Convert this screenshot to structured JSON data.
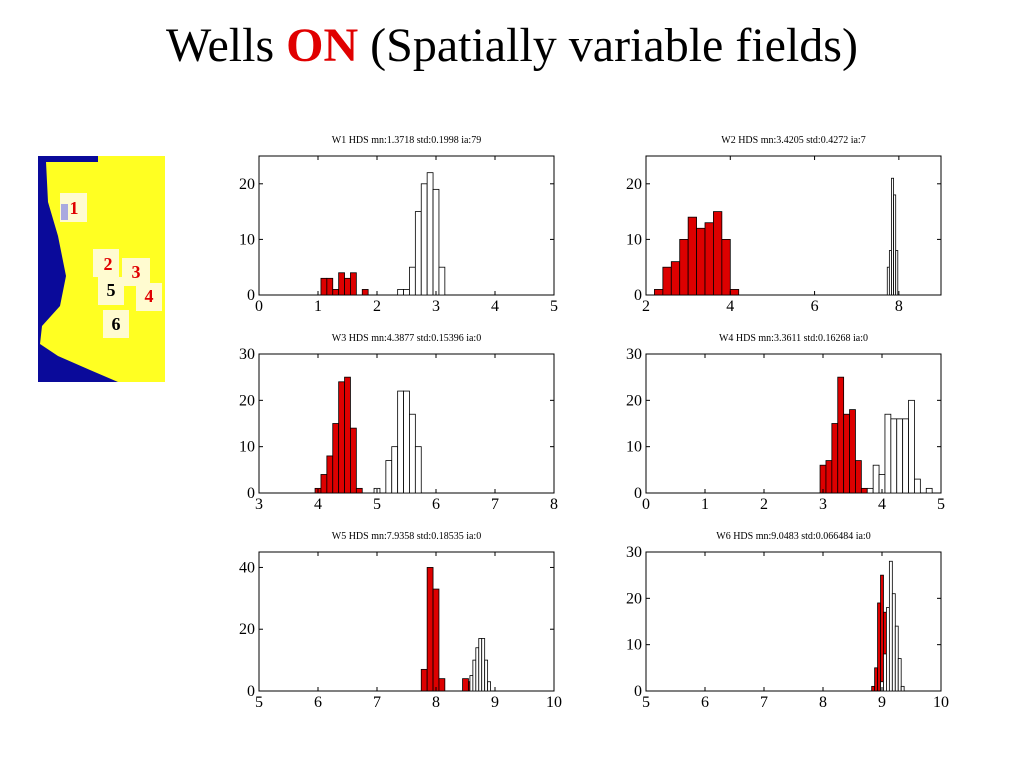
{
  "slide": {
    "title_prefix": "Wells",
    "title_highlight": "ON",
    "title_suffix": "(Spatially variable fields)",
    "highlight_color": "#e00000"
  },
  "map": {
    "background_color": "#0a0a9a",
    "field_color": "#ffff22",
    "label_red_color": "#e00000",
    "wells": [
      {
        "label": "1",
        "color": "red"
      },
      {
        "label": "2",
        "color": "red"
      },
      {
        "label": "3",
        "color": "red"
      },
      {
        "label": "4",
        "color": "red"
      },
      {
        "label": "5",
        "color": "black"
      },
      {
        "label": "6",
        "color": "black"
      }
    ]
  },
  "chart_data": [
    {
      "type": "histogram",
      "title": "W1 HDS mn:1.3718 std:0.1998 ia:79",
      "xlim": [
        0,
        5
      ],
      "xticks": [
        0,
        1,
        2,
        3,
        4,
        5
      ],
      "ylim": [
        0,
        25
      ],
      "yticks": [
        0,
        10,
        20
      ],
      "series": [
        {
          "name": "red",
          "color": "#dd0000",
          "bin_width": 0.1,
          "bins": [
            [
              1.1,
              3
            ],
            [
              1.2,
              3
            ],
            [
              1.3,
              1
            ],
            [
              1.4,
              4
            ],
            [
              1.5,
              3
            ],
            [
              1.6,
              4
            ],
            [
              1.8,
              1
            ]
          ]
        },
        {
          "name": "white",
          "color": "#ffffff",
          "bin_width": 0.1,
          "bins": [
            [
              2.4,
              1
            ],
            [
              2.5,
              1
            ],
            [
              2.6,
              5
            ],
            [
              2.7,
              15
            ],
            [
              2.8,
              20
            ],
            [
              2.9,
              22
            ],
            [
              3.0,
              19
            ],
            [
              3.1,
              5
            ]
          ]
        }
      ]
    },
    {
      "type": "histogram",
      "title": "W2 HDS mn:3.4205 std:0.4272 ia:7",
      "xlim": [
        2,
        9
      ],
      "xticks": [
        2,
        4,
        6,
        8
      ],
      "ylim": [
        0,
        25
      ],
      "yticks": [
        0,
        10,
        20
      ],
      "series": [
        {
          "name": "red",
          "color": "#dd0000",
          "bin_width": 0.2,
          "bins": [
            [
              2.3,
              1
            ],
            [
              2.5,
              5
            ],
            [
              2.7,
              6
            ],
            [
              2.9,
              10
            ],
            [
              3.1,
              14
            ],
            [
              3.3,
              12
            ],
            [
              3.5,
              13
            ],
            [
              3.7,
              15
            ],
            [
              3.9,
              10
            ],
            [
              4.1,
              1
            ]
          ]
        },
        {
          "name": "white",
          "color": "#ffffff",
          "bin_width": 0.05,
          "bins": [
            [
              7.75,
              5
            ],
            [
              7.8,
              8
            ],
            [
              7.85,
              21
            ],
            [
              7.9,
              18
            ],
            [
              7.95,
              8
            ]
          ]
        }
      ]
    },
    {
      "type": "histogram",
      "title": "W3 HDS mn:4.3877 std:0.15396 ia:0",
      "xlim": [
        3,
        8
      ],
      "xticks": [
        3,
        4,
        5,
        6,
        7,
        8
      ],
      "ylim": [
        0,
        30
      ],
      "yticks": [
        0,
        10,
        20,
        30
      ],
      "series": [
        {
          "name": "red",
          "color": "#dd0000",
          "bin_width": 0.1,
          "bins": [
            [
              4.0,
              1
            ],
            [
              4.1,
              4
            ],
            [
              4.2,
              8
            ],
            [
              4.3,
              15
            ],
            [
              4.4,
              24
            ],
            [
              4.5,
              25
            ],
            [
              4.6,
              14
            ],
            [
              4.7,
              1
            ]
          ]
        },
        {
          "name": "white",
          "color": "#ffffff",
          "bin_width": 0.1,
          "bins": [
            [
              5.0,
              1
            ],
            [
              5.2,
              7
            ],
            [
              5.3,
              10
            ],
            [
              5.4,
              22
            ],
            [
              5.5,
              22
            ],
            [
              5.6,
              17
            ],
            [
              5.7,
              10
            ]
          ]
        }
      ]
    },
    {
      "type": "histogram",
      "title": "W4 HDS mn:3.3611 std:0.16268 ia:0",
      "xlim": [
        0,
        5
      ],
      "xticks": [
        0,
        1,
        2,
        3,
        4,
        5
      ],
      "ylim": [
        0,
        30
      ],
      "yticks": [
        0,
        10,
        20,
        30
      ],
      "series": [
        {
          "name": "red",
          "color": "#dd0000",
          "bin_width": 0.1,
          "bins": [
            [
              3.0,
              6
            ],
            [
              3.1,
              7
            ],
            [
              3.2,
              15
            ],
            [
              3.3,
              25
            ],
            [
              3.4,
              17
            ],
            [
              3.5,
              18
            ],
            [
              3.6,
              7
            ],
            [
              3.7,
              1
            ]
          ]
        },
        {
          "name": "white",
          "color": "#ffffff",
          "bin_width": 0.1,
          "bins": [
            [
              3.8,
              1
            ],
            [
              3.9,
              6
            ],
            [
              4.0,
              4
            ],
            [
              4.1,
              17
            ],
            [
              4.2,
              16
            ],
            [
              4.3,
              16
            ],
            [
              4.4,
              16
            ],
            [
              4.5,
              20
            ],
            [
              4.6,
              3
            ],
            [
              4.8,
              1
            ]
          ]
        }
      ]
    },
    {
      "type": "histogram",
      "title": "W5 HDS mn:7.9358 std:0.18535 ia:0",
      "xlim": [
        5,
        10
      ],
      "xticks": [
        5,
        6,
        7,
        8,
        9,
        10
      ],
      "ylim": [
        0,
        45
      ],
      "yticks": [
        0,
        20,
        40
      ],
      "series": [
        {
          "name": "red",
          "color": "#dd0000",
          "bin_width": 0.1,
          "bins": [
            [
              7.8,
              7
            ],
            [
              7.9,
              40
            ],
            [
              8.0,
              33
            ],
            [
              8.1,
              4
            ],
            [
              8.5,
              4
            ],
            [
              8.6,
              3
            ]
          ]
        },
        {
          "name": "white",
          "color": "#ffffff",
          "bin_width": 0.05,
          "bins": [
            [
              8.6,
              5
            ],
            [
              8.65,
              10
            ],
            [
              8.7,
              14
            ],
            [
              8.75,
              17
            ],
            [
              8.8,
              17
            ],
            [
              8.85,
              10
            ],
            [
              8.9,
              3
            ]
          ]
        }
      ]
    },
    {
      "type": "histogram",
      "title": "W6 HDS mn:9.0483 std:0.066484 ia:0",
      "xlim": [
        5,
        10
      ],
      "xticks": [
        5,
        6,
        7,
        8,
        9,
        10
      ],
      "ylim": [
        0,
        30
      ],
      "yticks": [
        0,
        10,
        20,
        30
      ],
      "series": [
        {
          "name": "red",
          "color": "#dd0000",
          "bin_width": 0.05,
          "bins": [
            [
              8.85,
              1
            ],
            [
              8.9,
              5
            ],
            [
              8.95,
              19
            ],
            [
              9.0,
              25
            ],
            [
              9.05,
              17
            ],
            [
              9.1,
              6
            ],
            [
              9.15,
              1
            ]
          ]
        },
        {
          "name": "white",
          "color": "#ffffff",
          "bin_width": 0.05,
          "bins": [
            [
              9.0,
              2
            ],
            [
              9.05,
              8
            ],
            [
              9.1,
              18
            ],
            [
              9.15,
              28
            ],
            [
              9.2,
              21
            ],
            [
              9.25,
              14
            ],
            [
              9.3,
              7
            ],
            [
              9.35,
              1
            ]
          ]
        }
      ]
    }
  ]
}
